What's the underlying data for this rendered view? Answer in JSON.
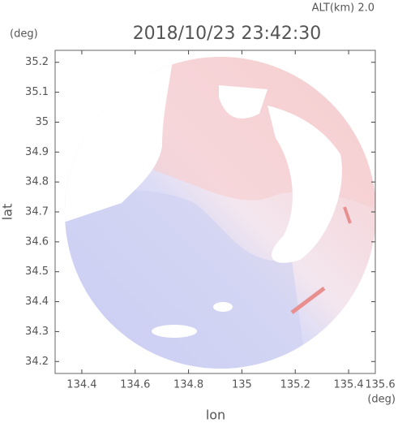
{
  "chart_data": {
    "type": "map",
    "title": "2018/10/23 23:42:30",
    "subtitle": "ALT(km) 2.0",
    "x_label": "lon",
    "y_label": "lat",
    "x_unit": "(deg)",
    "y_unit": "(deg)",
    "xlim": [
      134.3,
      135.5
    ],
    "ylim": [
      34.16,
      35.24
    ],
    "xticks": [
      134.4,
      134.6,
      134.8,
      135.0,
      135.2,
      135.4,
      135.6
    ],
    "yticks": [
      34.2,
      34.3,
      34.4,
      34.5,
      34.6,
      34.7,
      34.8,
      34.9,
      35.0,
      35.1,
      35.2
    ]
  }
}
